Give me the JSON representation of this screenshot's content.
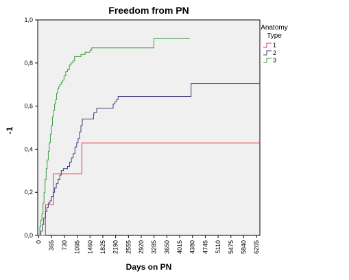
{
  "chart_data": {
    "type": "line",
    "title": "Freedom from PN",
    "xlabel": "Days on PN",
    "ylabel": "-1",
    "xlim": [
      -30,
      6300
    ],
    "ylim": [
      0,
      1.0
    ],
    "x_ticks": [
      0,
      365,
      730,
      1095,
      1460,
      1825,
      2190,
      2555,
      2920,
      3285,
      3650,
      4015,
      4380,
      4745,
      5110,
      5475,
      5840,
      6205
    ],
    "x_tick_labels": [
      "0",
      "365",
      "730",
      "1095",
      "1460",
      "1825",
      "2190",
      "2555",
      "2920",
      "3285",
      "3650",
      "4015",
      "4380",
      "4745",
      "5110",
      "5475",
      "5840",
      "6205"
    ],
    "y_ticks": [
      0,
      0.2,
      0.4,
      0.6,
      0.8,
      1.0
    ],
    "y_tick_labels": [
      "0,0",
      "0,2",
      "0,4",
      "0,6",
      "0,8",
      "1,0"
    ],
    "grid": false,
    "legend": {
      "title": "Anatomy Type",
      "title_lines": [
        "Anatomy",
        "Type"
      ],
      "position": "right-top"
    },
    "series": [
      {
        "name": "1",
        "color": "#e8303a",
        "x": [
          0,
          190,
          190,
          270,
          270,
          420,
          420,
          1230,
          1230,
          6300
        ],
        "y": [
          0,
          0,
          0.143,
          0.143,
          0.143,
          0.143,
          0.286,
          0.286,
          0.429,
          0.429
        ]
      },
      {
        "name": "2",
        "color": "#3d3d7a",
        "x": [
          0,
          60,
          100,
          140,
          190,
          230,
          270,
          320,
          360,
          410,
          450,
          500,
          550,
          600,
          640,
          700,
          760,
          820,
          880,
          930,
          980,
          1030,
          1080,
          1120,
          1160,
          1200,
          1240,
          1530,
          1560,
          1570,
          1590,
          1620,
          1650,
          1880,
          1900,
          2120,
          2170,
          2210,
          2260,
          3300,
          4340,
          6300
        ],
        "y": [
          0,
          0.02,
          0.05,
          0.08,
          0.11,
          0.13,
          0.15,
          0.16,
          0.18,
          0.2,
          0.22,
          0.24,
          0.26,
          0.28,
          0.3,
          0.31,
          0.31,
          0.32,
          0.34,
          0.36,
          0.38,
          0.41,
          0.43,
          0.45,
          0.48,
          0.51,
          0.54,
          0.54,
          0.56,
          0.57,
          0.57,
          0.57,
          0.59,
          0.59,
          0.59,
          0.61,
          0.62,
          0.63,
          0.645,
          0.645,
          0.705,
          0.705
        ]
      },
      {
        "name": "3",
        "color": "#3a9a3a",
        "x": [
          0,
          30,
          60,
          90,
          120,
          150,
          180,
          210,
          240,
          270,
          300,
          330,
          360,
          390,
          420,
          450,
          480,
          510,
          540,
          570,
          600,
          640,
          680,
          720,
          770,
          820,
          870,
          920,
          970,
          1020,
          1080,
          1200,
          1320,
          1460,
          1510,
          1600,
          3240,
          3280,
          4300
        ],
        "y": [
          0,
          0.04,
          0.07,
          0.1,
          0.15,
          0.2,
          0.26,
          0.31,
          0.35,
          0.39,
          0.43,
          0.47,
          0.51,
          0.55,
          0.58,
          0.61,
          0.63,
          0.66,
          0.68,
          0.69,
          0.7,
          0.71,
          0.72,
          0.74,
          0.76,
          0.77,
          0.79,
          0.8,
          0.81,
          0.83,
          0.83,
          0.84,
          0.85,
          0.86,
          0.87,
          0.87,
          0.87,
          0.913,
          0.913
        ]
      }
    ]
  }
}
